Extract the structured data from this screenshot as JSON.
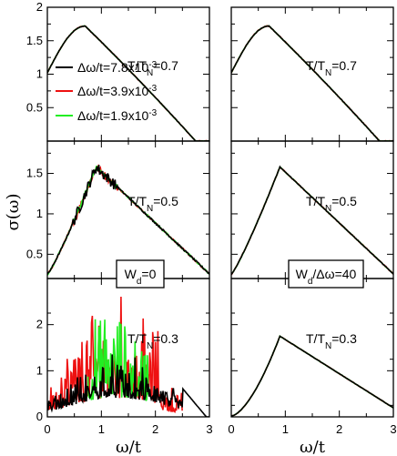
{
  "chart_data": {
    "type": "line",
    "ylabel": "σ(ω)",
    "xlabel": "ω/t",
    "x_range": [
      0,
      3
    ],
    "x_ticks": [
      0,
      1,
      2,
      3
    ],
    "grid": false,
    "legend": {
      "placement": "top-left of top-left panel",
      "entries": [
        {
          "pre": "Δω/t=7.8x10",
          "exp": "-3",
          "color": "#000000"
        },
        {
          "pre": "Δω/t=3.9x10",
          "exp": "-3",
          "color": "#ee1111"
        },
        {
          "pre": "Δω/t=1.9x10",
          "exp": "-3",
          "color": "#22ee22"
        }
      ]
    },
    "rows": [
      {
        "label_pre": "T/T",
        "label_sub": "N",
        "label_post": "=0.7",
        "ylim": [
          0,
          2
        ],
        "yticks": [
          0.5,
          1,
          1.5,
          2
        ],
        "yticklabels": [
          "0.5",
          "1",
          "1.5",
          "2"
        ]
      },
      {
        "label_pre": "T/T",
        "label_sub": "N",
        "label_post": "=0.5",
        "ylim": [
          0.2,
          1.9
        ],
        "yticks": [
          0.5,
          1,
          1.5
        ],
        "yticklabels": [
          "0.5",
          "1",
          "1.5"
        ]
      },
      {
        "label_pre": "T/T",
        "label_sub": "N",
        "label_post": "=0.3",
        "ylim": [
          0,
          3
        ],
        "yticks": [
          0,
          1,
          2
        ],
        "yticklabels": [
          "0",
          "1",
          "2"
        ]
      }
    ],
    "columns": [
      {
        "box_pre": "W",
        "box_sub": "d",
        "box_post": "=0"
      },
      {
        "box_pre": "W",
        "box_sub": "d",
        "box_post": "/Δω=40"
      }
    ],
    "series_colors": [
      "#000000",
      "#ee1111",
      "#22ee22"
    ]
  }
}
